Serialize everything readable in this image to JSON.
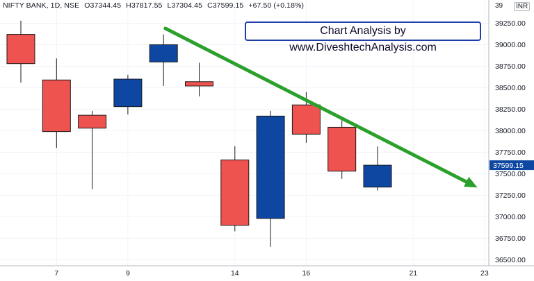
{
  "header": {
    "symbol": "NIFTY BANK, 1D, NSE",
    "open": "O37344.45",
    "high": "H37817.55",
    "low": "L37304.45",
    "close": "C37599.15",
    "change": "+67.50 (+0.18%)"
  },
  "annotation": {
    "text": "Chart Analysis by www.DiveshtechAnalysis.com"
  },
  "axis": {
    "currency": "INR",
    "last_price_label": "37599.15"
  },
  "colors": {
    "up": "#0d47a1",
    "down": "#ef5350",
    "trendline": "#2ca02c",
    "last_price_bg": "#0d47a1",
    "brand_border": "#1e3ea8"
  },
  "chart_data": {
    "type": "candlestick",
    "y_ticks": [
      "36500.00",
      "36750.00",
      "37000.00",
      "37250.00",
      "37500.00",
      "37750.00",
      "38000.00",
      "38250.00",
      "38500.00",
      "38750.00",
      "39000.00",
      "39250.00"
    ],
    "ylim": [
      36430,
      39520
    ],
    "x_ticks": [
      {
        "i": 1,
        "label": "7"
      },
      {
        "i": 3,
        "label": "9"
      },
      {
        "i": 6,
        "label": "14"
      },
      {
        "i": 8,
        "label": "16"
      },
      {
        "i": 11,
        "label": "21"
      },
      {
        "i": 13,
        "label": "23"
      }
    ],
    "candles": [
      {
        "i": 0,
        "open": 39120,
        "high": 39280,
        "low": 38560,
        "close": 38780
      },
      {
        "i": 1,
        "open": 38590,
        "high": 38840,
        "low": 37800,
        "close": 37990
      },
      {
        "i": 2,
        "open": 38180,
        "high": 38230,
        "low": 37320,
        "close": 38030
      },
      {
        "i": 3,
        "open": 38280,
        "high": 38650,
        "low": 38190,
        "close": 38600
      },
      {
        "i": 4,
        "open": 38800,
        "high": 39120,
        "low": 38520,
        "close": 39000
      },
      {
        "i": 5,
        "open": 38570,
        "high": 38790,
        "low": 38400,
        "close": 38520
      },
      {
        "i": 6,
        "open": 37660,
        "high": 37820,
        "low": 36830,
        "close": 36900
      },
      {
        "i": 7,
        "open": 36980,
        "high": 38230,
        "low": 36650,
        "close": 38170
      },
      {
        "i": 8,
        "open": 38300,
        "high": 38450,
        "low": 37860,
        "close": 37960
      },
      {
        "i": 9,
        "open": 38040,
        "high": 38120,
        "low": 37440,
        "close": 37530
      },
      {
        "i": 10,
        "open": 37344.45,
        "high": 37817.55,
        "low": 37304.45,
        "close": 37599.15
      }
    ],
    "trendline": {
      "from": {
        "i": 4.05,
        "value": 39190
      },
      "to": {
        "i": 12.8,
        "value": 37340
      }
    },
    "last_price": 37599.15
  }
}
